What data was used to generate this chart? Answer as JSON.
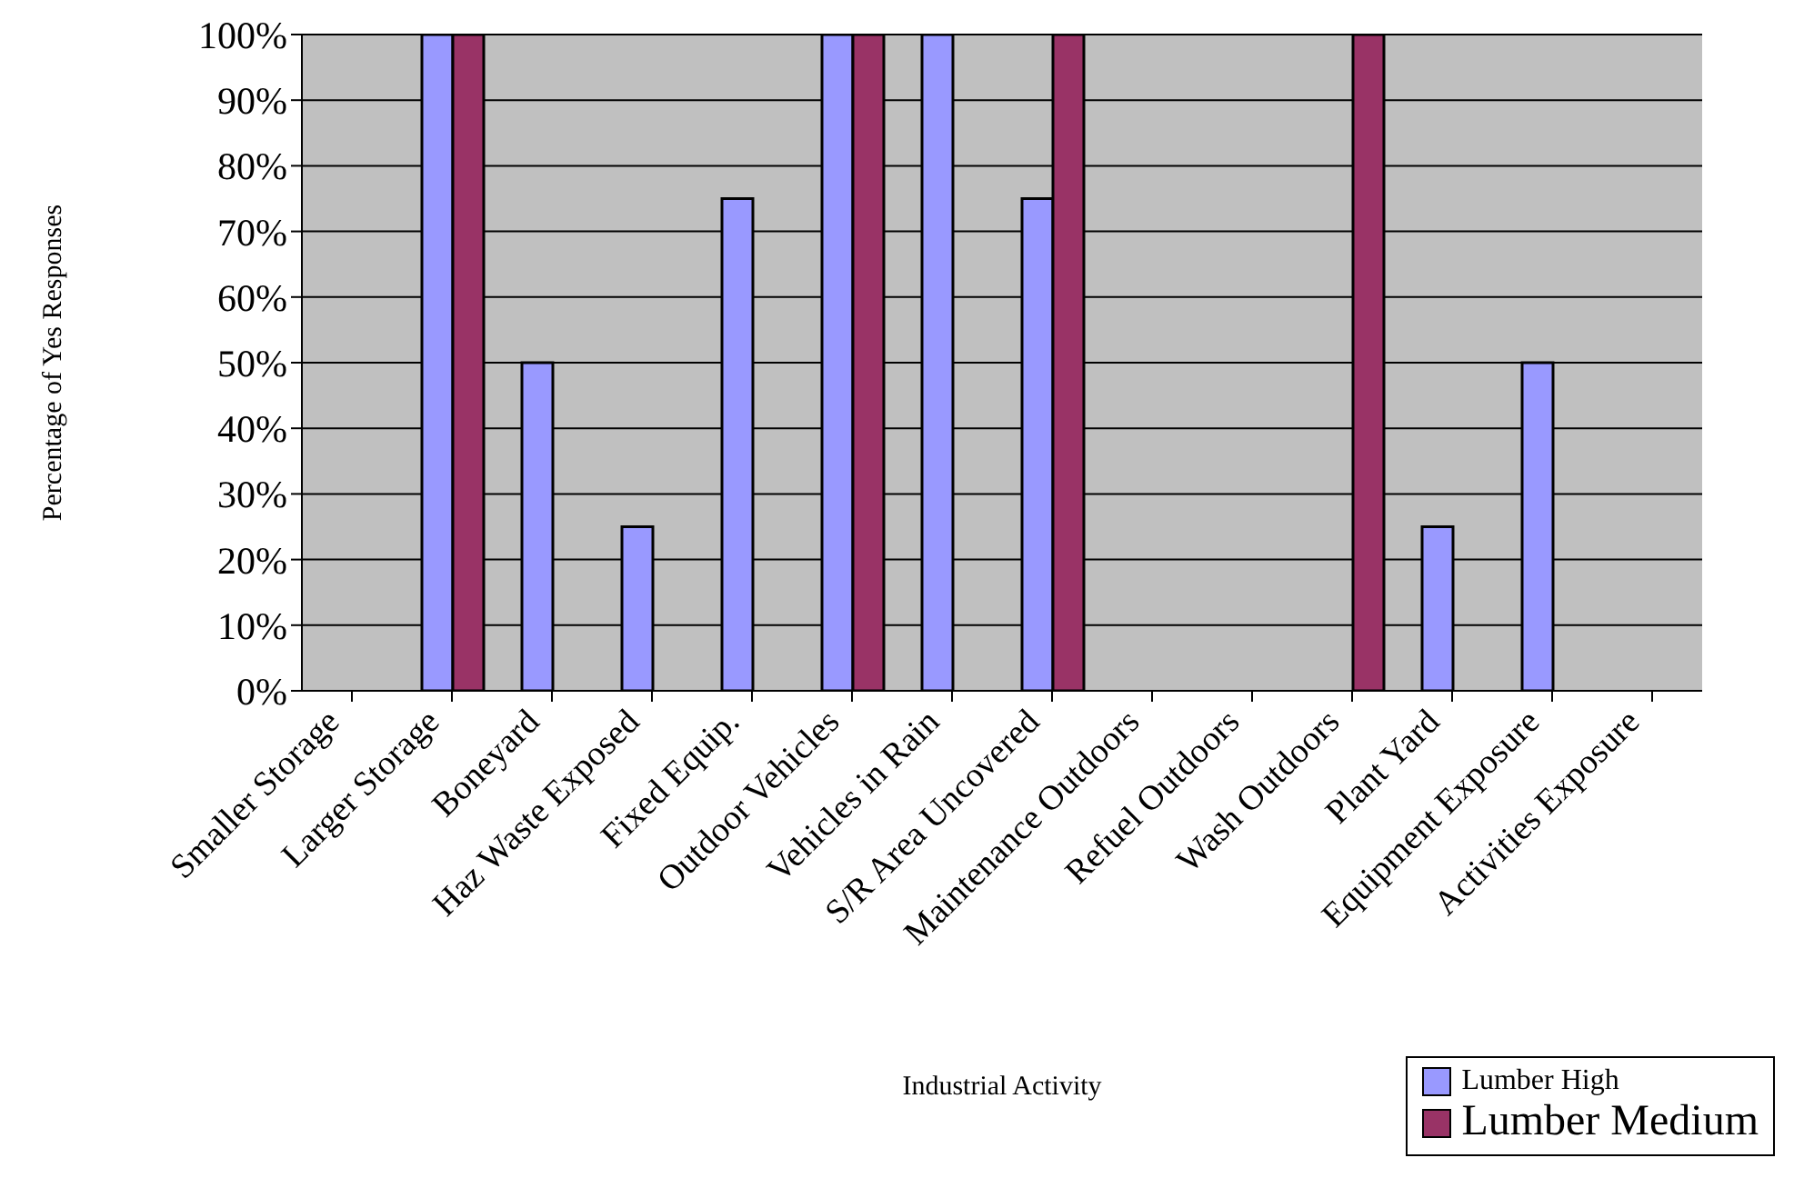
{
  "chart_data": {
    "type": "bar",
    "xlabel": "Industrial Activity",
    "ylabel": "Percentage of Yes Responses",
    "categories": [
      "Smaller Storage",
      "Larger Storage",
      "Boneyard",
      "Haz Waste Exposed",
      "Fixed Equip.",
      "Outdoor Vehicles",
      "Vehicles in Rain",
      "S/R Area Uncovered",
      "Maintenance Outdoors",
      "Refuel Outdoors",
      "Wash Outdoors",
      "Plant Yard",
      "Equipment Exposure",
      "Activities Exposure"
    ],
    "series": [
      {
        "name": "Lumber High",
        "color": "#9999ff",
        "values": [
          0,
          100,
          50,
          25,
          75,
          100,
          100,
          75,
          0,
          0,
          0,
          25,
          50,
          0
        ]
      },
      {
        "name": "Lumber Medium",
        "color": "#993366",
        "values": [
          0,
          100,
          0,
          0,
          0,
          100,
          0,
          100,
          0,
          0,
          100,
          0,
          0,
          0
        ]
      }
    ],
    "ylim": [
      0,
      100
    ],
    "yticks": [
      {
        "value": 0,
        "label": "0%"
      },
      {
        "value": 10,
        "label": "10%"
      },
      {
        "value": 20,
        "label": "20%"
      },
      {
        "value": 30,
        "label": "30%"
      },
      {
        "value": 40,
        "label": "40%"
      },
      {
        "value": 50,
        "label": "50%"
      },
      {
        "value": 60,
        "label": "60%"
      },
      {
        "value": 70,
        "label": "70%"
      },
      {
        "value": 80,
        "label": "80%"
      },
      {
        "value": 90,
        "label": "90%"
      },
      {
        "value": 100,
        "label": "100%"
      }
    ],
    "grid": "y",
    "legend": "bottom right"
  }
}
